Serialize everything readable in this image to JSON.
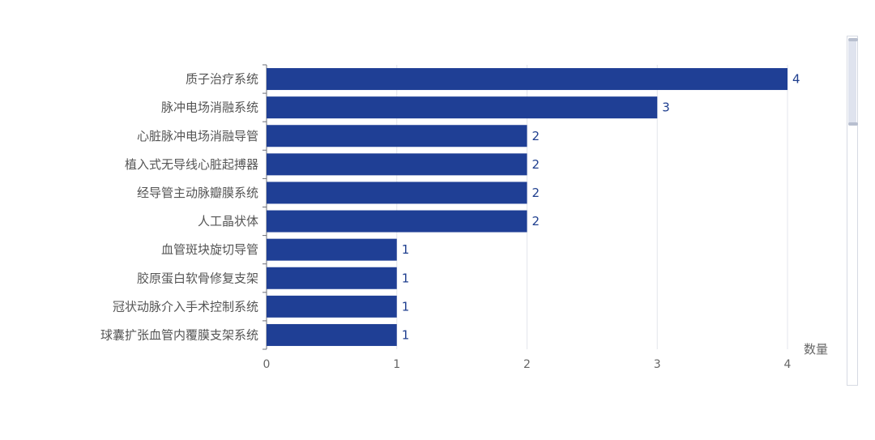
{
  "chart_data": {
    "type": "bar",
    "orientation": "horizontal",
    "categories": [
      "质子治疗系统",
      "脉冲电场消融系统",
      "心脏脉冲电场消融导管",
      "植入式无导线心脏起搏器",
      "经导管主动脉瓣膜系统",
      "人工晶状体",
      "血管斑块旋切导管",
      "胶原蛋白软骨修复支架",
      "冠状动脉介入手术控制系统",
      "球囊扩张血管内覆膜支架系统"
    ],
    "values": [
      4,
      3,
      2,
      2,
      2,
      2,
      1,
      1,
      1,
      1
    ],
    "xlabel": "数量",
    "xlim": [
      0,
      4
    ],
    "xticks": [
      0,
      1,
      2,
      3,
      4
    ],
    "grid": true,
    "bar_color": "#1f3f95",
    "data_labels": true
  }
}
